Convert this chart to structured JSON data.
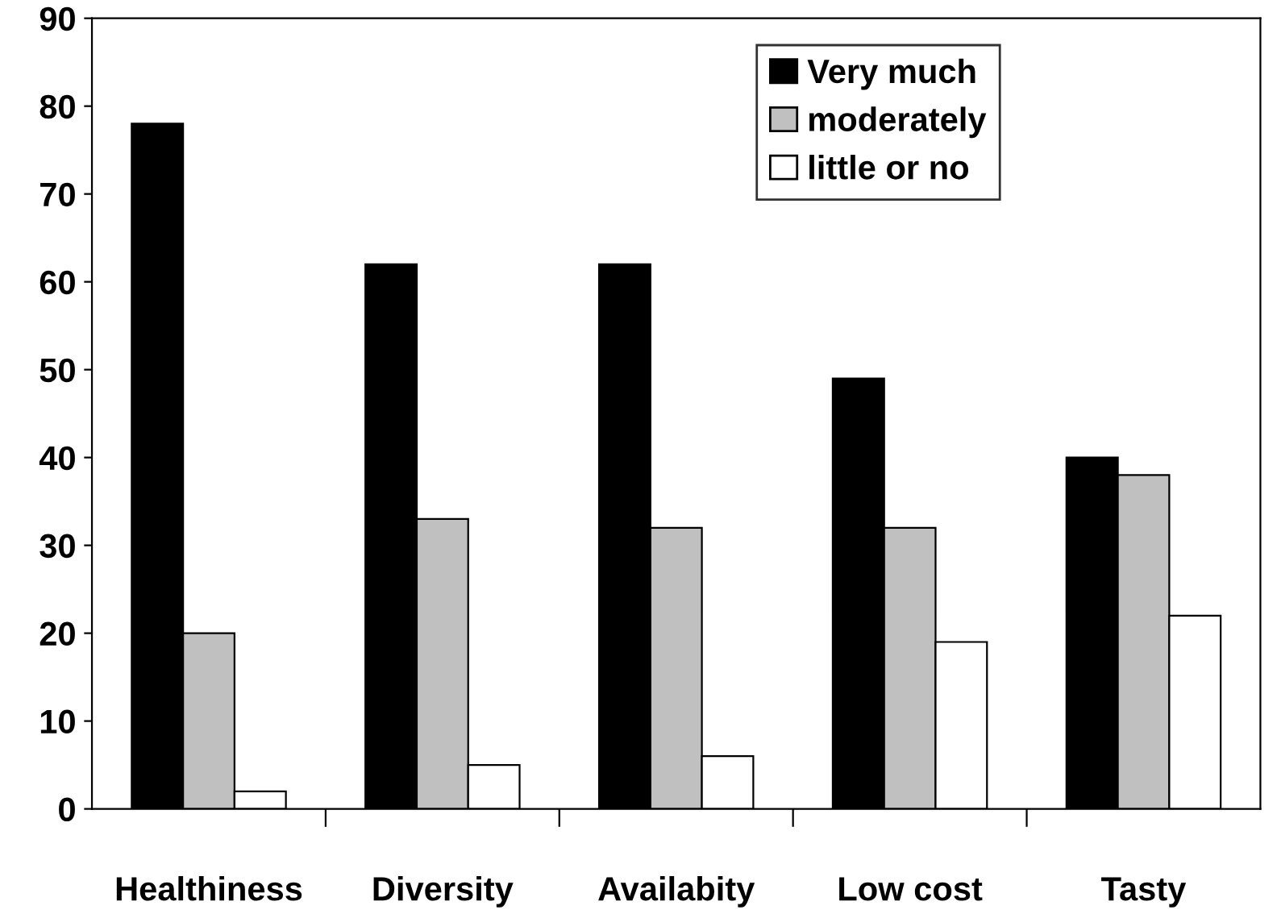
{
  "chart_data": {
    "type": "bar",
    "categories": [
      "Healthiness",
      "Diversity",
      "Availabity",
      "Low cost",
      "Tasty"
    ],
    "series": [
      {
        "name": "Very much",
        "color": "#000000",
        "values": [
          78,
          62,
          62,
          49,
          40
        ]
      },
      {
        "name": "moderately",
        "color": "#c0c0c0",
        "values": [
          20,
          33,
          32,
          32,
          38
        ]
      },
      {
        "name": "little or no",
        "color": "#ffffff",
        "values": [
          2,
          5,
          6,
          19,
          22
        ]
      }
    ],
    "ylim": [
      0,
      90
    ],
    "yticks": [
      0,
      10,
      20,
      30,
      40,
      50,
      60,
      70,
      80,
      90
    ],
    "grid": false,
    "legend": "top right"
  }
}
